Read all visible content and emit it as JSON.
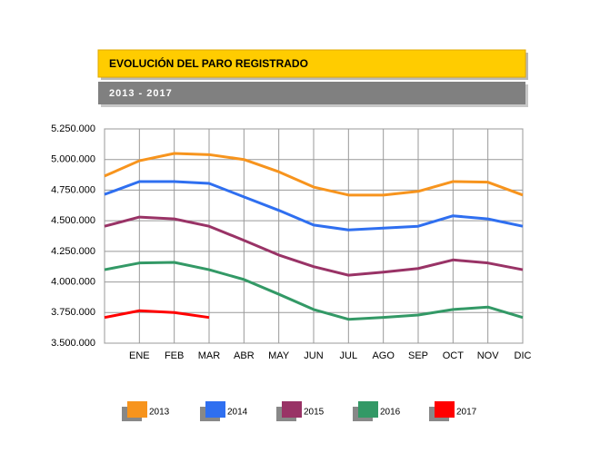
{
  "chart_data": {
    "type": "line",
    "title": "EVOLUCIÓN DEL PARO REGISTRADO",
    "subtitle": "2013 - 2017",
    "categories": [
      null,
      "ENE",
      "FEB",
      "MAR",
      "ABR",
      "MAY",
      "JUN",
      "JUL",
      "AGO",
      "SEP",
      "OCT",
      "NOV",
      "DIC"
    ],
    "series": [
      {
        "name": "2013",
        "color": "#f7941d",
        "values": [
          4865000,
          4990000,
          5050000,
          5040000,
          5000000,
          4900000,
          4775000,
          4710000,
          4710000,
          4740000,
          4820000,
          4815000,
          4710000
        ]
      },
      {
        "name": "2014",
        "color": "#2f6ff0",
        "values": [
          4715000,
          4820000,
          4820000,
          4805000,
          4695000,
          4585000,
          4465000,
          4425000,
          4440000,
          4455000,
          4540000,
          4515000,
          4455000
        ]
      },
      {
        "name": "2015",
        "color": "#993366",
        "values": [
          4455000,
          4530000,
          4515000,
          4455000,
          4340000,
          4220000,
          4125000,
          4055000,
          4080000,
          4110000,
          4180000,
          4155000,
          4100000
        ]
      },
      {
        "name": "2016",
        "color": "#339966",
        "values": [
          4100000,
          4155000,
          4160000,
          4100000,
          4020000,
          3900000,
          3775000,
          3695000,
          3710000,
          3730000,
          3775000,
          3795000,
          3710000
        ]
      },
      {
        "name": "2017",
        "color": "#ff0000",
        "values": [
          3710000,
          3765000,
          3750000,
          3710000,
          null,
          null,
          null,
          null,
          null,
          null,
          null,
          null,
          null
        ]
      }
    ],
    "ylim": [
      3500000,
      5250000
    ],
    "yticks": [
      {
        "value": 3500000,
        "label": "3.500.000"
      },
      {
        "value": 3750000,
        "label": "3.750.000"
      },
      {
        "value": 4000000,
        "label": "4.000.000"
      },
      {
        "value": 4250000,
        "label": "4.250.000"
      },
      {
        "value": 4500000,
        "label": "4.500.000"
      },
      {
        "value": 4750000,
        "label": "4.750.000"
      },
      {
        "value": 5000000,
        "label": "5.000.000"
      },
      {
        "value": 5250000,
        "label": "5.250.000"
      }
    ],
    "grid": true,
    "legend": "bottom"
  }
}
